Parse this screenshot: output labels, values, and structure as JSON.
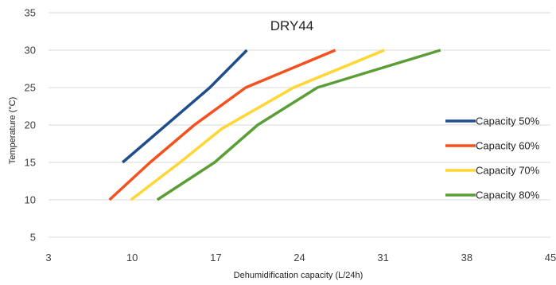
{
  "chart_data": {
    "type": "line",
    "title": "DRY44",
    "xlabel": "Dehumidification capacity (L/24h)",
    "ylabel": "Temperature (°C)",
    "xlim": [
      3,
      45
    ],
    "ylim": [
      5,
      35
    ],
    "xticks": [
      "3",
      "10",
      "17",
      "24",
      "31",
      "38",
      "45"
    ],
    "yticks": [
      "5",
      "10",
      "15",
      "20",
      "25",
      "30",
      "35"
    ],
    "grid": "horizontal",
    "legend_position": "right",
    "series": [
      {
        "name": "Capacity 50%",
        "color": "#1f4e8c",
        "x": [
          9.2,
          16.5,
          19.6
        ],
        "y": [
          15,
          25,
          30
        ]
      },
      {
        "name": "Capacity 60%",
        "color": "#f4511e",
        "x": [
          8.1,
          11.5,
          15.2,
          19.5,
          27.0
        ],
        "y": [
          10,
          15,
          20,
          25,
          30
        ]
      },
      {
        "name": "Capacity 70%",
        "color": "#ffd633",
        "x": [
          9.9,
          14.0,
          17.5,
          23.5,
          31.1
        ],
        "y": [
          10,
          15,
          19.5,
          25,
          30
        ]
      },
      {
        "name": "Capacity 80%",
        "color": "#5b9e35",
        "x": [
          12.1,
          16.9,
          20.5,
          25.5,
          35.8
        ],
        "y": [
          10,
          15,
          20,
          25,
          30
        ]
      }
    ]
  }
}
